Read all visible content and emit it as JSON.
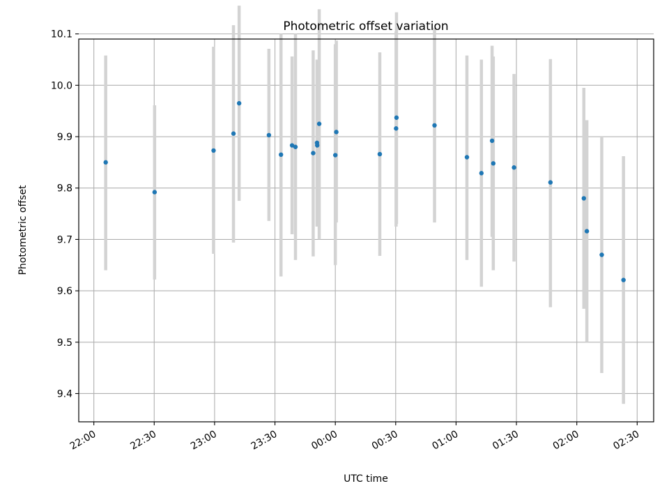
{
  "chart_data": {
    "type": "scatter",
    "title": "Photometric offset variation",
    "xlabel": "UTC time",
    "ylabel": "Photometric offset",
    "x_ticks": [
      "22:00",
      "22:30",
      "23:00",
      "23:30",
      "00:00",
      "00:30",
      "01:00",
      "01:30",
      "02:00",
      "02:30"
    ],
    "y_ticks": [
      "9.4",
      "9.5",
      "9.6",
      "9.7",
      "9.8",
      "9.9",
      "10.0",
      "10.1"
    ],
    "x_tick_minutes": [
      0,
      30,
      60,
      90,
      120,
      150,
      180,
      210,
      240,
      270
    ],
    "y_tick_values": [
      9.4,
      9.5,
      9.6,
      9.7,
      9.8,
      9.9,
      10.0,
      10.1
    ],
    "xlim_minutes": [
      -7.5,
      278.2
    ],
    "ylim": [
      9.345,
      10.09
    ],
    "grid": true,
    "marker_color": "#1f77b4",
    "errorbar_color": "#d3d3d3",
    "points": [
      {
        "t": 5.9,
        "y": 9.85,
        "lo": 9.64,
        "hi": 10.058
      },
      {
        "t": 30.2,
        "y": 9.792,
        "lo": 9.622,
        "hi": 9.961
      },
      {
        "t": 59.5,
        "y": 9.873,
        "lo": 9.672,
        "hi": 10.075
      },
      {
        "t": 69.4,
        "y": 9.906,
        "lo": 9.694,
        "hi": 10.117
      },
      {
        "t": 72.2,
        "y": 9.965,
        "lo": 9.775,
        "hi": 10.155
      },
      {
        "t": 87.0,
        "y": 9.903,
        "lo": 9.736,
        "hi": 10.071
      },
      {
        "t": 93.0,
        "y": 9.865,
        "lo": 9.628,
        "hi": 10.1
      },
      {
        "t": 98.5,
        "y": 9.883,
        "lo": 9.71,
        "hi": 10.056
      },
      {
        "t": 100.2,
        "y": 9.88,
        "lo": 9.66,
        "hi": 10.1
      },
      {
        "t": 109.0,
        "y": 9.868,
        "lo": 9.667,
        "hi": 10.068
      },
      {
        "t": 110.9,
        "y": 9.888,
        "lo": 9.725,
        "hi": 10.05
      },
      {
        "t": 111.0,
        "y": 9.883,
        "lo": 9.73,
        "hi": 10.03
      },
      {
        "t": 112.0,
        "y": 9.925,
        "lo": 9.7,
        "hi": 10.148
      },
      {
        "t": 120.0,
        "y": 9.864,
        "lo": 9.65,
        "hi": 10.08
      },
      {
        "t": 120.5,
        "y": 9.909,
        "lo": 9.733,
        "hi": 10.087
      },
      {
        "t": 142.1,
        "y": 9.866,
        "lo": 9.668,
        "hi": 10.064
      },
      {
        "t": 150.2,
        "y": 9.916,
        "lo": 9.725,
        "hi": 10.105
      },
      {
        "t": 150.4,
        "y": 9.937,
        "lo": 9.73,
        "hi": 10.142
      },
      {
        "t": 169.3,
        "y": 9.922,
        "lo": 9.733,
        "hi": 10.112
      },
      {
        "t": 185.4,
        "y": 9.86,
        "lo": 9.66,
        "hi": 10.058
      },
      {
        "t": 192.6,
        "y": 9.829,
        "lo": 9.608,
        "hi": 10.05
      },
      {
        "t": 197.9,
        "y": 9.892,
        "lo": 9.705,
        "hi": 10.077
      },
      {
        "t": 198.5,
        "y": 9.848,
        "lo": 9.64,
        "hi": 10.056
      },
      {
        "t": 208.8,
        "y": 9.84,
        "lo": 9.657,
        "hi": 10.022
      },
      {
        "t": 226.9,
        "y": 9.811,
        "lo": 9.568,
        "hi": 10.051
      },
      {
        "t": 243.5,
        "y": 9.78,
        "lo": 9.565,
        "hi": 9.995
      },
      {
        "t": 245.0,
        "y": 9.716,
        "lo": 9.5,
        "hi": 9.932
      },
      {
        "t": 252.4,
        "y": 9.67,
        "lo": 9.44,
        "hi": 9.9
      },
      {
        "t": 263.2,
        "y": 9.621,
        "lo": 9.38,
        "hi": 9.862
      }
    ]
  }
}
